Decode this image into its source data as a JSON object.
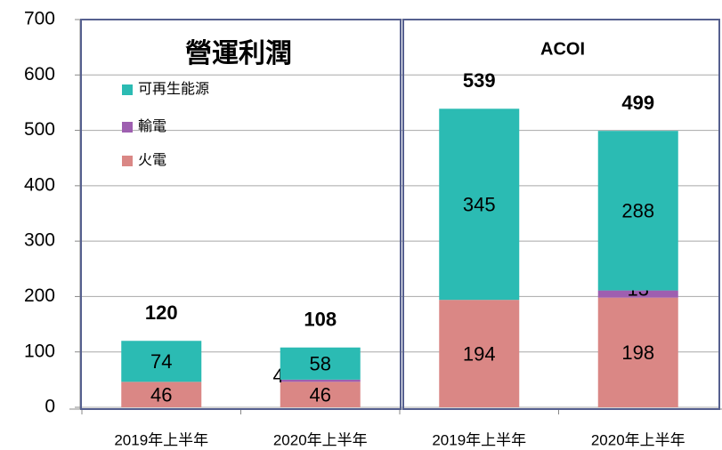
{
  "chart_data": {
    "type": "stacked_bar",
    "panel_titles": [
      "營運利潤",
      "ACOI"
    ],
    "categories": [
      "2019年上半年",
      "2020年上半年",
      "2019年上半年",
      "2020年上半年"
    ],
    "series": [
      {
        "name": "火電",
        "color": "#da8785",
        "values": [
          46,
          46,
          194,
          198
        ]
      },
      {
        "name": "輸電",
        "color": "#9e5fb0",
        "values": [
          null,
          4,
          null,
          13
        ]
      },
      {
        "name": "可再生能源",
        "color": "#2bbbb3",
        "values": [
          74,
          58,
          345,
          288
        ]
      }
    ],
    "totals": [
      120,
      108,
      539,
      499
    ],
    "ylim": [
      0,
      700
    ],
    "yticks": [
      0,
      100,
      200,
      300,
      400,
      500,
      600,
      700
    ],
    "grid": true
  }
}
